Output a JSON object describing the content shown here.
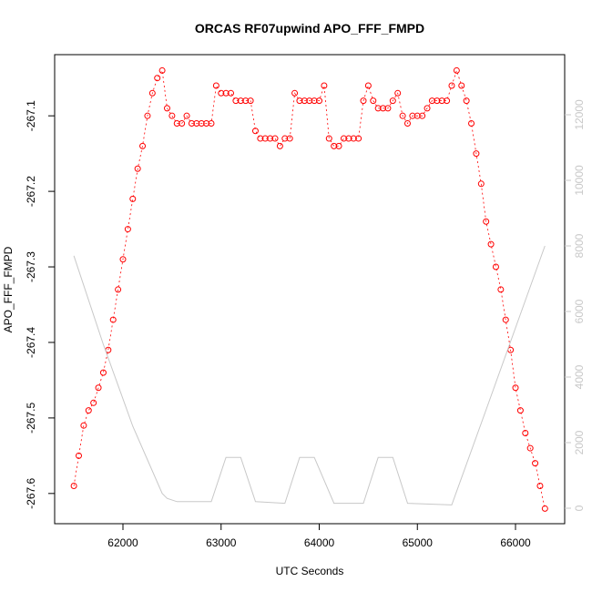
{
  "chart_data": {
    "type": "scatter",
    "title": "ORCAS RF07upwind APO_FFF_FMPD",
    "xlabel": "UTC Seconds",
    "ylabel": "APO_FFF_FMPD",
    "xlim": [
      61304,
      66501
    ],
    "xticks": [
      62000,
      63000,
      64000,
      65000,
      66000
    ],
    "ylim": [
      -267.64,
      -267.019
    ],
    "yticks": [
      -267.6,
      -267.5,
      -267.4,
      -267.3,
      -267.2,
      -267.1
    ],
    "y2lim": [
      -472,
      13833
    ],
    "y2ticks": [
      0,
      2000,
      4000,
      6000,
      8000,
      10000,
      12000
    ],
    "series": [
      {
        "color": "#ff0000",
        "x": [
          61500,
          61550,
          61600,
          61650,
          61700,
          61750,
          61800,
          61850,
          61900,
          61950,
          62000,
          62050,
          62100,
          62150,
          62200,
          62250,
          62300,
          62350,
          62400,
          62450,
          62500,
          62550,
          62600,
          62650,
          62700,
          62750,
          62800,
          62850,
          62900,
          62950,
          63000,
          63050,
          63100,
          63150,
          63200,
          63250,
          63300,
          63350,
          63400,
          63450,
          63500,
          63550,
          63600,
          63650,
          63700,
          63750,
          63800,
          63850,
          63900,
          63950,
          64000,
          64050,
          64100,
          64150,
          64200,
          64250,
          64300,
          64350,
          64400,
          64450,
          64500,
          64550,
          64600,
          64650,
          64700,
          64750,
          64800,
          64850,
          64900,
          64950,
          65000,
          65050,
          65100,
          65150,
          65200,
          65250,
          65300,
          65350,
          65400,
          65450,
          65500,
          65550,
          65600,
          65650,
          65700,
          65750,
          65800,
          65850,
          65900,
          65950,
          66000,
          66050,
          66100,
          66150,
          66200,
          66250,
          66300
        ],
        "values": [
          -267.59,
          -267.55,
          -267.51,
          -267.49,
          -267.48,
          -267.46,
          -267.44,
          -267.41,
          -267.37,
          -267.33,
          -267.29,
          -267.25,
          -267.21,
          -267.17,
          -267.14,
          -267.1,
          -267.07,
          -267.05,
          -267.04,
          -267.09,
          -267.1,
          -267.11,
          -267.11,
          -267.1,
          -267.11,
          -267.11,
          -267.11,
          -267.11,
          -267.11,
          -267.06,
          -267.07,
          -267.07,
          -267.07,
          -267.08,
          -267.08,
          -267.08,
          -267.08,
          -267.12,
          -267.13,
          -267.13,
          -267.13,
          -267.13,
          -267.14,
          -267.13,
          -267.13,
          -267.07,
          -267.08,
          -267.08,
          -267.08,
          -267.08,
          -267.08,
          -267.06,
          -267.13,
          -267.14,
          -267.14,
          -267.13,
          -267.13,
          -267.13,
          -267.13,
          -267.08,
          -267.06,
          -267.08,
          -267.09,
          -267.09,
          -267.09,
          -267.08,
          -267.07,
          -267.1,
          -267.11,
          -267.1,
          -267.1,
          -267.1,
          -267.09,
          -267.08,
          -267.08,
          -267.08,
          -267.08,
          -267.06,
          -267.04,
          -267.06,
          -267.08,
          -267.11,
          -267.15,
          -267.19,
          -267.24,
          -267.27,
          -267.3,
          -267.33,
          -267.37,
          -267.41,
          -267.46,
          -267.49,
          -267.52,
          -267.54,
          -267.56,
          -267.59,
          -267.62
        ]
      },
      {
        "color": "#c8c8c8",
        "axis": "y2",
        "x": [
          61500,
          61800,
          62100,
          62400,
          62450,
          62550,
          62900,
          63050,
          63200,
          63350,
          63650,
          63800,
          63950,
          64150,
          64450,
          64600,
          64750,
          64900,
          65350,
          65700,
          66000,
          66300
        ],
        "values": [
          7700,
          5000,
          2500,
          450,
          300,
          200,
          200,
          1550,
          1550,
          200,
          150,
          1550,
          1550,
          150,
          150,
          1550,
          1550,
          150,
          100,
          3000,
          5500,
          8000
        ]
      }
    ]
  }
}
